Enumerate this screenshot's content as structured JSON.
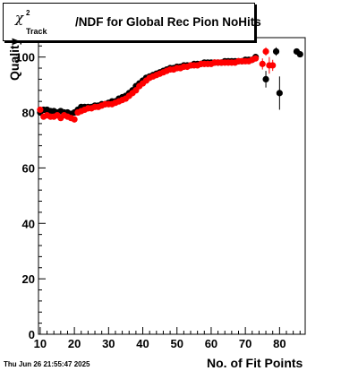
{
  "chart_data": {
    "type": "scatter",
    "title": {
      "symbol": "χ",
      "superscript": "2",
      "subscript": "Track",
      "text": "/NDF for Global Rec Pion NoHits"
    },
    "xlabel": "No. of Fit Points",
    "ylabel": "Quality",
    "xlim": [
      9.5,
      87.5
    ],
    "ylim": [
      0,
      107
    ],
    "xticks": [
      10,
      20,
      30,
      40,
      50,
      60,
      70,
      80
    ],
    "yticks": [
      0,
      20,
      40,
      60,
      80,
      100
    ],
    "grid": false,
    "legend": "none",
    "series": [
      {
        "color": "#000000",
        "points": [
          [
            10,
            80
          ],
          [
            11,
            81
          ],
          [
            12,
            81
          ],
          [
            13,
            80.5
          ],
          [
            14,
            80.5
          ],
          [
            15,
            80
          ],
          [
            16,
            80.5
          ],
          [
            17,
            80
          ],
          [
            18,
            80
          ],
          [
            19,
            79.5
          ],
          [
            20,
            80
          ],
          [
            21,
            81
          ],
          [
            22,
            82
          ],
          [
            23,
            82
          ],
          [
            24,
            82
          ],
          [
            25,
            82
          ],
          [
            26,
            82.5
          ],
          [
            27,
            82.5
          ],
          [
            28,
            83
          ],
          [
            29,
            83
          ],
          [
            30,
            83.5
          ],
          [
            31,
            84
          ],
          [
            32,
            84
          ],
          [
            33,
            85
          ],
          [
            34,
            85.5
          ],
          [
            35,
            86
          ],
          [
            36,
            87
          ],
          [
            37,
            88
          ],
          [
            38,
            89.5
          ],
          [
            39,
            90.5
          ],
          [
            40,
            91.5
          ],
          [
            41,
            92.5
          ],
          [
            42,
            93
          ],
          [
            43,
            93.5
          ],
          [
            44,
            94
          ],
          [
            45,
            94.5
          ],
          [
            46,
            95
          ],
          [
            47,
            95.5
          ],
          [
            48,
            96
          ],
          [
            49,
            96
          ],
          [
            50,
            96.5
          ],
          [
            51,
            96.5
          ],
          [
            52,
            97
          ],
          [
            53,
            97
          ],
          [
            54,
            97
          ],
          [
            55,
            97.5
          ],
          [
            56,
            97.5
          ],
          [
            57,
            97.5
          ],
          [
            58,
            98
          ],
          [
            59,
            98
          ],
          [
            60,
            98
          ],
          [
            61,
            98
          ],
          [
            62,
            98
          ],
          [
            63,
            98
          ],
          [
            64,
            98.5
          ],
          [
            65,
            98.5
          ],
          [
            66,
            98.5
          ],
          [
            67,
            98.5
          ],
          [
            68,
            98.5
          ],
          [
            69,
            98.5
          ],
          [
            70,
            99
          ],
          [
            71,
            99
          ],
          [
            72,
            99
          ],
          [
            73,
            100
          ]
        ],
        "error_points": [
          [
            76,
            92,
            3
          ],
          [
            79,
            102,
            1.5
          ],
          [
            80,
            87,
            6
          ],
          [
            85,
            102,
            1
          ],
          [
            86,
            101,
            1
          ]
        ]
      },
      {
        "color": "#ff0000",
        "points": [
          [
            10,
            81
          ],
          [
            11,
            78.5
          ],
          [
            12,
            79
          ],
          [
            13,
            78.5
          ],
          [
            14,
            78.5
          ],
          [
            15,
            79
          ],
          [
            16,
            78
          ],
          [
            17,
            79
          ],
          [
            18,
            78.5
          ],
          [
            19,
            78
          ],
          [
            20,
            77.5
          ],
          [
            21,
            80
          ],
          [
            22,
            80.5
          ],
          [
            23,
            81
          ],
          [
            24,
            81.5
          ],
          [
            25,
            81.5
          ],
          [
            26,
            82
          ],
          [
            27,
            82
          ],
          [
            28,
            82.5
          ],
          [
            29,
            83
          ],
          [
            30,
            83
          ],
          [
            31,
            83
          ],
          [
            32,
            83.5
          ],
          [
            33,
            84
          ],
          [
            34,
            84.5
          ],
          [
            35,
            85
          ],
          [
            36,
            86
          ],
          [
            37,
            87
          ],
          [
            38,
            88
          ],
          [
            39,
            89.5
          ],
          [
            40,
            90.5
          ],
          [
            41,
            91.5
          ],
          [
            42,
            92.5
          ],
          [
            43,
            93
          ],
          [
            44,
            93.5
          ],
          [
            45,
            94
          ],
          [
            46,
            94.5
          ],
          [
            47,
            95
          ],
          [
            48,
            95.5
          ],
          [
            49,
            95.5
          ],
          [
            50,
            96
          ],
          [
            51,
            96
          ],
          [
            52,
            96.5
          ],
          [
            53,
            96.5
          ],
          [
            54,
            97
          ],
          [
            55,
            97
          ],
          [
            56,
            97
          ],
          [
            57,
            97.5
          ],
          [
            58,
            97.5
          ],
          [
            59,
            97.5
          ],
          [
            60,
            97.5
          ],
          [
            61,
            98
          ],
          [
            62,
            98
          ],
          [
            63,
            98
          ],
          [
            64,
            98
          ],
          [
            65,
            98
          ],
          [
            66,
            98
          ],
          [
            67,
            98
          ],
          [
            68,
            98.5
          ],
          [
            69,
            98.5
          ],
          [
            70,
            98.5
          ],
          [
            71,
            98.5
          ],
          [
            72,
            99
          ],
          [
            73,
            99.5
          ]
        ],
        "error_points": [
          [
            75,
            97.5,
            2
          ],
          [
            76,
            102,
            1.5
          ],
          [
            77,
            97,
            3
          ],
          [
            78,
            97,
            2
          ]
        ]
      }
    ]
  },
  "footer": {
    "timestamp": "Thu Jun 26 21:55:47 2025"
  }
}
